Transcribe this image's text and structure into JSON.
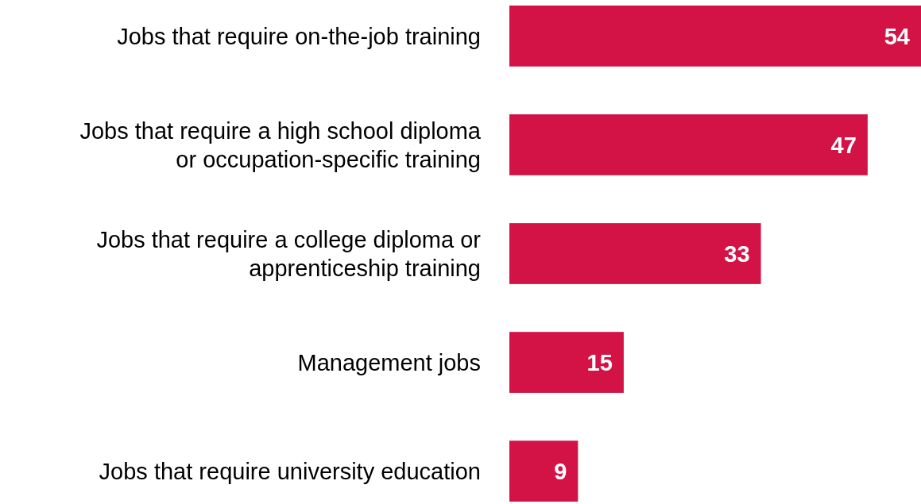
{
  "chart_data": {
    "type": "bar",
    "orientation": "horizontal",
    "categories": [
      "Jobs that require on-the-job training",
      "Jobs that require a high school diploma or occupation-specific training",
      "Jobs that require a college diploma or apprenticeship training",
      "Management jobs",
      "Jobs that require university education"
    ],
    "values": [
      54,
      47,
      33,
      15,
      9
    ],
    "color": "#d31245",
    "data_labels": true
  }
}
